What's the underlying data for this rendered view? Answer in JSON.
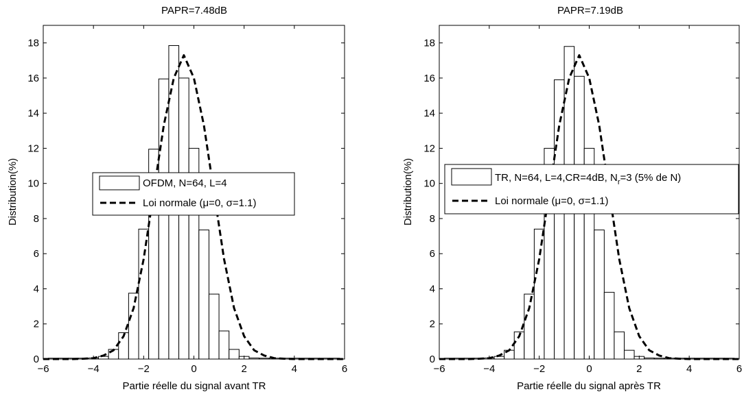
{
  "chart_data": [
    {
      "type": "bar",
      "title": "PAPR=7.48dB",
      "xlabel": "Partie réelle du signal avant TR",
      "ylabel": "Distribution(%)",
      "xlim": [
        -6,
        6
      ],
      "ylim": [
        0,
        19
      ],
      "xticks": [
        -6,
        -4,
        -2,
        0,
        2,
        4,
        6
      ],
      "yticks": [
        0,
        2,
        4,
        6,
        8,
        10,
        12,
        14,
        16,
        18
      ],
      "bin_width": 0.4,
      "grid": false,
      "legend_position": "center",
      "series": [
        {
          "name": "OFDM, N=64, L=4",
          "kind": "histogram",
          "x": [
            -5.6,
            -5.2,
            -4.8,
            -4.4,
            -4.0,
            -3.6,
            -3.2,
            -2.8,
            -2.4,
            -2.0,
            -1.6,
            -1.2,
            -0.8,
            -0.4,
            0.0,
            0.4,
            0.8,
            1.2,
            1.6,
            2.0,
            2.4,
            2.8,
            3.2,
            3.6,
            4.0,
            4.4,
            4.8,
            5.2,
            5.6
          ],
          "values": [
            0.05,
            0.05,
            0.05,
            0.05,
            0.06,
            0.15,
            0.55,
            1.5,
            3.75,
            7.4,
            11.95,
            15.95,
            17.85,
            16.0,
            12.0,
            7.35,
            3.7,
            1.6,
            0.55,
            0.15,
            0.06,
            0.05,
            0.05,
            0.05,
            0.05,
            0.05,
            0.05,
            0.05,
            0.05
          ]
        },
        {
          "name": "Loi normale (μ=0, σ=1.1)",
          "kind": "line",
          "style": "dashed",
          "x": [
            -6.0,
            -4.8,
            -4.4,
            -4.0,
            -3.6,
            -3.2,
            -2.8,
            -2.4,
            -2.0,
            -1.6,
            -1.2,
            -0.8,
            -0.4,
            0.0,
            0.4,
            0.8,
            1.2,
            1.6,
            2.0,
            2.4,
            2.8,
            3.2,
            3.6,
            4.0,
            4.4,
            4.8,
            6.0
          ],
          "y": [
            0.0,
            0.0,
            0.02,
            0.05,
            0.2,
            0.5,
            1.3,
            2.9,
            5.7,
            9.5,
            13.3,
            16.0,
            17.3,
            16.0,
            13.3,
            9.5,
            5.7,
            2.9,
            1.3,
            0.5,
            0.2,
            0.05,
            0.02,
            0.0,
            0.0,
            0.0,
            0.0
          ]
        }
      ],
      "legend": [
        {
          "label": "OFDM, N=64, L=4",
          "sub": "",
          "rest": ""
        },
        {
          "label": "Loi normale (μ=0, σ=1.1)",
          "sub": "",
          "rest": ""
        }
      ]
    },
    {
      "type": "bar",
      "title": "PAPR=7.19dB",
      "xlabel": "Partie réelle du signal après TR",
      "ylabel": "Distribution(%)",
      "xlim": [
        -6,
        6
      ],
      "ylim": [
        0,
        19
      ],
      "xticks": [
        -6,
        -4,
        -2,
        0,
        2,
        4,
        6
      ],
      "yticks": [
        0,
        2,
        4,
        6,
        8,
        10,
        12,
        14,
        16,
        18
      ],
      "bin_width": 0.4,
      "grid": false,
      "legend_position": "center",
      "series": [
        {
          "name": "TR, N=64, L=4,CR=4dB, Nr=3 (5% de N)",
          "kind": "histogram",
          "x": [
            -5.6,
            -5.2,
            -4.8,
            -4.4,
            -4.0,
            -3.6,
            -3.2,
            -2.8,
            -2.4,
            -2.0,
            -1.6,
            -1.2,
            -0.8,
            -0.4,
            0.0,
            0.4,
            0.8,
            1.2,
            1.6,
            2.0,
            2.4,
            2.8,
            3.2,
            3.6,
            4.0,
            4.4,
            4.8,
            5.2,
            5.6
          ],
          "values": [
            0.05,
            0.05,
            0.05,
            0.05,
            0.06,
            0.15,
            0.5,
            1.55,
            3.7,
            7.4,
            12.0,
            15.9,
            17.8,
            16.1,
            12.0,
            7.35,
            3.8,
            1.55,
            0.5,
            0.15,
            0.06,
            0.05,
            0.05,
            0.05,
            0.05,
            0.05,
            0.05,
            0.05,
            0.05
          ]
        },
        {
          "name": "Loi normale (μ=0, σ=1.1)",
          "kind": "line",
          "style": "dashed",
          "x": [
            -6.0,
            -4.8,
            -4.4,
            -4.0,
            -3.6,
            -3.2,
            -2.8,
            -2.4,
            -2.0,
            -1.6,
            -1.2,
            -0.8,
            -0.4,
            0.0,
            0.4,
            0.8,
            1.2,
            1.6,
            2.0,
            2.4,
            2.8,
            3.2,
            3.6,
            4.0,
            4.4,
            4.8,
            6.0
          ],
          "y": [
            0.0,
            0.0,
            0.02,
            0.05,
            0.2,
            0.5,
            1.3,
            2.9,
            5.7,
            9.5,
            13.3,
            16.0,
            17.3,
            16.0,
            13.3,
            9.5,
            5.7,
            2.9,
            1.3,
            0.5,
            0.2,
            0.05,
            0.02,
            0.0,
            0.0,
            0.0,
            0.0
          ]
        }
      ],
      "legend": [
        {
          "label": "TR, N=64, L=4,CR=4dB, N",
          "sub": "r",
          "rest": "=3 (5% de N)"
        },
        {
          "label": "Loi normale (μ=0, σ=1.1)",
          "sub": "",
          "rest": ""
        }
      ]
    }
  ]
}
